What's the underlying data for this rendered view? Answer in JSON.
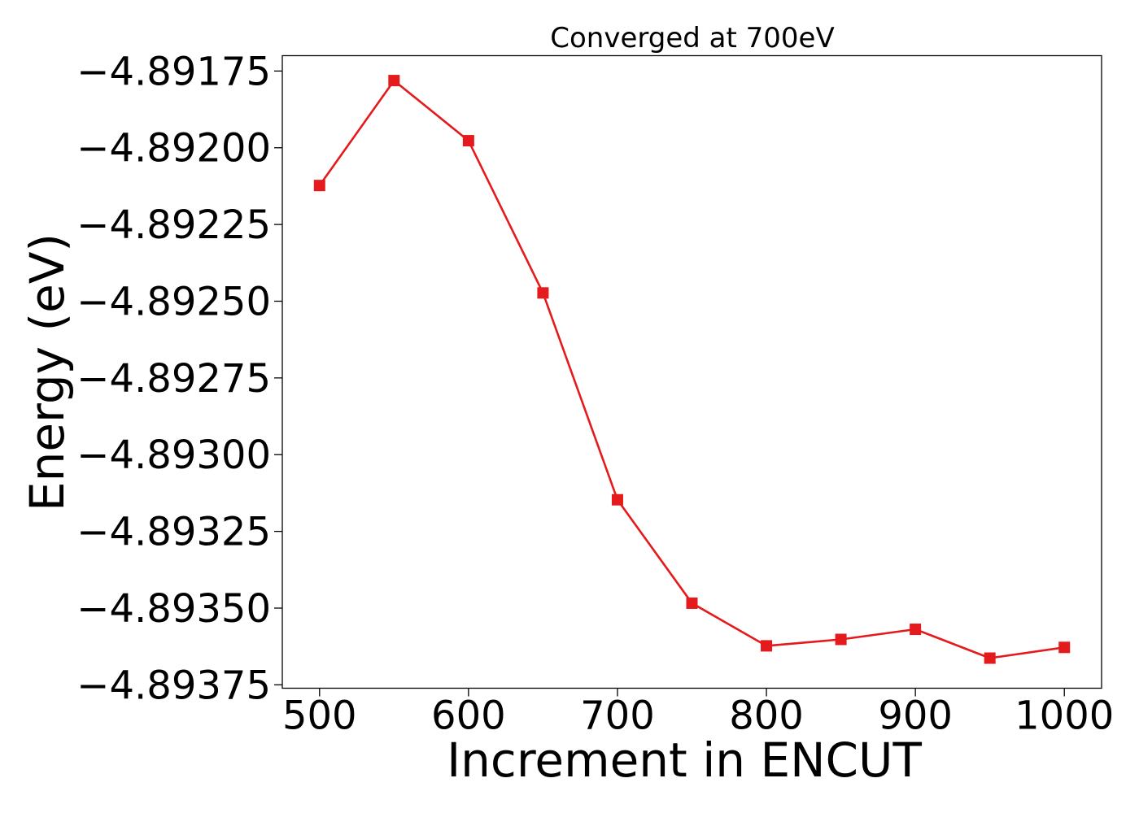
{
  "chart_data": {
    "type": "line",
    "title": "Converged at 700eV",
    "xlabel": "Increment in ENCUT",
    "ylabel": "Energy (eV)",
    "x": [
      500,
      550,
      600,
      650,
      700,
      750,
      800,
      850,
      900,
      950,
      1000
    ],
    "series": [
      {
        "values": [
          -4.892123,
          -4.891781,
          -4.891977,
          -4.892473,
          -4.893147,
          -4.893484,
          -4.893623,
          -4.893602,
          -4.893569,
          -4.893663,
          -4.893628
        ],
        "color": "#e41a1c",
        "marker": "square"
      }
    ],
    "xlim": [
      475,
      1025
    ],
    "ylim": [
      -4.893761,
      -4.8917
    ],
    "xticks": [
      500,
      600,
      700,
      800,
      900,
      1000
    ],
    "xtick_labels": [
      "500",
      "600",
      "700",
      "800",
      "900",
      "1000"
    ],
    "yticks": [
      -4.89175,
      -4.892,
      -4.89225,
      -4.8925,
      -4.89275,
      -4.893,
      -4.89325,
      -4.8935,
      -4.89375
    ],
    "ytick_labels": [
      "−4.89175",
      "−4.89200",
      "−4.89225",
      "−4.89250",
      "−4.89275",
      "−4.89300",
      "−4.89325",
      "−4.89350",
      "−4.89375"
    ],
    "grid": false,
    "legend": false
  }
}
